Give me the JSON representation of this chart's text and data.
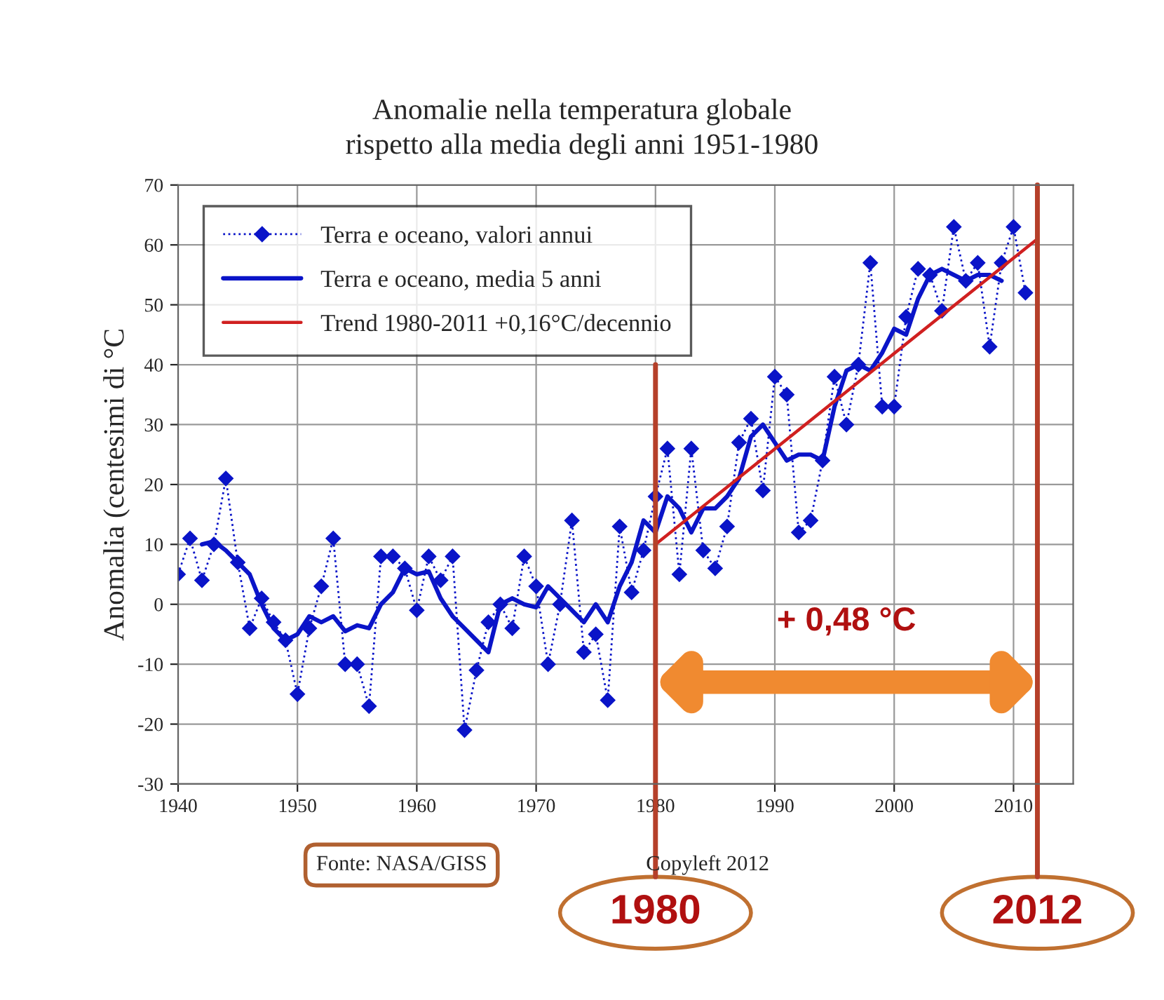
{
  "chart_data": {
    "type": "line",
    "title": "Anomalie nella temperatura globale\nrispetto alla media degli anni 1951-1980",
    "ylabel": "Anomalia (centesimi di °C",
    "series": [
      {
        "name": "Terra e oceano, valori annui",
        "color": "#0a14c8",
        "marker": "diamond",
        "line_style": "dotted",
        "x": [
          1940,
          1941,
          1942,
          1943,
          1944,
          1945,
          1946,
          1947,
          1948,
          1949,
          1950,
          1951,
          1952,
          1953,
          1954,
          1955,
          1956,
          1957,
          1958,
          1959,
          1960,
          1961,
          1962,
          1963,
          1964,
          1965,
          1966,
          1967,
          1968,
          1969,
          1970,
          1971,
          1972,
          1973,
          1974,
          1975,
          1976,
          1977,
          1978,
          1979,
          1980,
          1981,
          1982,
          1983,
          1984,
          1985,
          1986,
          1987,
          1988,
          1989,
          1990,
          1991,
          1992,
          1993,
          1994,
          1995,
          1996,
          1997,
          1998,
          1999,
          2000,
          2001,
          2002,
          2003,
          2004,
          2005,
          2006,
          2007,
          2008,
          2009,
          2010,
          2011
        ],
        "values": [
          5,
          11,
          4,
          10,
          21,
          7,
          -4,
          1,
          -3,
          -6,
          -15,
          -4,
          3,
          11,
          -10,
          -10,
          -17,
          8,
          8,
          6,
          -1,
          8,
          4,
          8,
          -21,
          -11,
          -3,
          0,
          -4,
          8,
          3,
          -10,
          0,
          14,
          -8,
          -5,
          -16,
          13,
          2,
          9,
          18,
          26,
          5,
          26,
          9,
          6,
          13,
          27,
          31,
          19,
          38,
          35,
          12,
          14,
          24,
          38,
          30,
          40,
          57,
          33,
          33,
          48,
          56,
          55,
          49,
          63,
          54,
          57,
          43,
          57,
          63,
          52
        ]
      },
      {
        "name": "Terra e oceano, media 5 anni",
        "color": "#0a14c8",
        "marker": "none",
        "line_style": "solid",
        "x": [
          1942,
          1943,
          1944,
          1945,
          1946,
          1947,
          1948,
          1949,
          1950,
          1951,
          1952,
          1953,
          1954,
          1955,
          1956,
          1957,
          1958,
          1959,
          1960,
          1961,
          1962,
          1963,
          1964,
          1965,
          1966,
          1967,
          1968,
          1969,
          1970,
          1971,
          1972,
          1973,
          1974,
          1975,
          1976,
          1977,
          1978,
          1979,
          1980,
          1981,
          1982,
          1983,
          1984,
          1985,
          1986,
          1987,
          1988,
          1989,
          1990,
          1991,
          1992,
          1993,
          1994,
          1995,
          1996,
          1997,
          1998,
          1999,
          2000,
          2001,
          2002,
          2003,
          2004,
          2005,
          2006,
          2007,
          2008,
          2009
        ],
        "values": [
          10,
          10.5,
          9,
          7,
          5,
          0,
          -4,
          -6,
          -5,
          -2,
          -3,
          -2,
          -4.5,
          -3.5,
          -4,
          0,
          2,
          6,
          5,
          5.5,
          1,
          -2,
          -4,
          -6,
          -8,
          0,
          1,
          0,
          -0.5,
          3,
          1,
          -1,
          -3,
          0,
          -3,
          3,
          7,
          14,
          12,
          18,
          16,
          12,
          16,
          16,
          18,
          21,
          28,
          30,
          27,
          24,
          25,
          25,
          24,
          33,
          39,
          40,
          39,
          42,
          46,
          45,
          51,
          55,
          56,
          55,
          54,
          55,
          55,
          54
        ]
      },
      {
        "name": "Trend 1980-2011 +0,16°C/decennio",
        "color": "#d02020",
        "marker": "none",
        "line_style": "solid",
        "x": [
          1980,
          2012
        ],
        "values": [
          10,
          61
        ]
      }
    ],
    "xlim": [
      1940,
      2015
    ],
    "xticks": [
      1940,
      1950,
      1960,
      1970,
      1980,
      1990,
      2000,
      2010
    ],
    "ylim": [
      -30,
      70
    ],
    "yticks": [
      -30,
      -20,
      -10,
      0,
      10,
      20,
      30,
      40,
      50,
      60,
      70
    ],
    "grid": true,
    "legend": "top left",
    "ref_lines": [
      {
        "axis": "x",
        "value": 1980,
        "label": "1980",
        "color": "#b5402a"
      },
      {
        "axis": "x",
        "value": 2012,
        "label": "2012",
        "color": "#b5402a"
      }
    ],
    "annotations": [
      "+ 0,48 °C",
      "Fonte: NASA/GISS",
      "Copyleft 2012"
    ]
  }
}
